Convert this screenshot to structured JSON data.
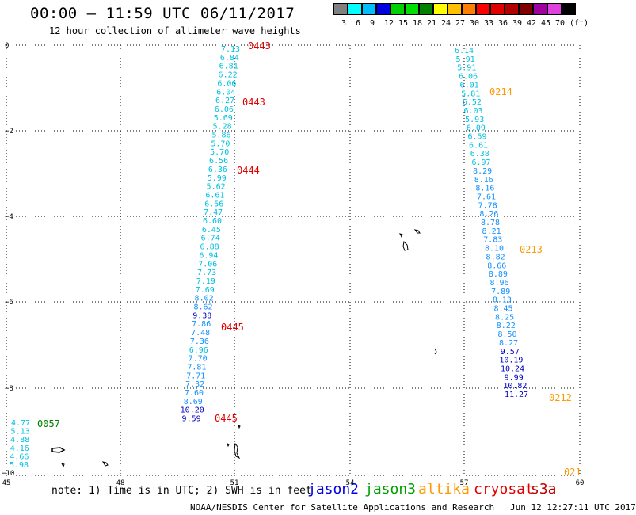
{
  "title": "00:00 – 11:59 UTC 06/11/2017",
  "subtitle": "12 hour collection of altimeter wave heights",
  "colorbar": {
    "colors": [
      "#808080",
      "#00ffff",
      "#00bfff",
      "#0000e0",
      "#00d000",
      "#00e000",
      "#008000",
      "#ffff00",
      "#ffc000",
      "#ff8000",
      "#ff0000",
      "#e00000",
      "#b00000",
      "#800000",
      "#a000a0",
      "#e040e0",
      "#000000"
    ],
    "labels": [
      "3",
      "6",
      "9",
      "12",
      "15",
      "18",
      "21",
      "24",
      "27",
      "30",
      "33",
      "36",
      "39",
      "42",
      "45",
      "70",
      "(ft)"
    ]
  },
  "axes": {
    "x_ticks": [
      "45",
      "48",
      "51",
      "54",
      "57",
      "60"
    ],
    "y_ticks": [
      "0",
      "−2",
      "−4",
      "−6",
      "−8",
      "−10"
    ]
  },
  "tracks": [
    {
      "name": "left",
      "values": [
        {
          "v": "7.13",
          "c": "#00c0e0"
        },
        {
          "v": "6.84",
          "c": "#00c0e0"
        },
        {
          "v": "6.81",
          "c": "#00c0e0"
        },
        {
          "v": "6.22",
          "c": "#00c0e0"
        },
        {
          "v": "6.06",
          "c": "#00c0e0"
        },
        {
          "v": "6.04",
          "c": "#00c0e0"
        },
        {
          "v": "6.27",
          "c": "#00c0e0"
        },
        {
          "v": "6.06",
          "c": "#00c0e0"
        },
        {
          "v": "5.69",
          "c": "#00c0e0"
        },
        {
          "v": "5.28",
          "c": "#00c0e0"
        },
        {
          "v": "5.86",
          "c": "#00c0e0"
        },
        {
          "v": "5.70",
          "c": "#00c0e0"
        },
        {
          "v": "5.70",
          "c": "#00c0e0"
        },
        {
          "v": "6.56",
          "c": "#00c0e0"
        },
        {
          "v": "6.36",
          "c": "#00c0e0"
        },
        {
          "v": "5.99",
          "c": "#00c0e0"
        },
        {
          "v": "5.62",
          "c": "#00c0e0"
        },
        {
          "v": "6.61",
          "c": "#00c0e0"
        },
        {
          "v": "6.56",
          "c": "#00c0e0"
        },
        {
          "v": "7.47",
          "c": "#00c0e0"
        },
        {
          "v": "6.60",
          "c": "#00c0e0"
        },
        {
          "v": "6.45",
          "c": "#00c0e0"
        },
        {
          "v": "6.74",
          "c": "#00c0e0"
        },
        {
          "v": "6.88",
          "c": "#00c0e0"
        },
        {
          "v": "6.94",
          "c": "#00c0e0"
        },
        {
          "v": "7.06",
          "c": "#00c0e0"
        },
        {
          "v": "7.73",
          "c": "#00c0e0"
        },
        {
          "v": "7.19",
          "c": "#00c0e0"
        },
        {
          "v": "7.69",
          "c": "#00c0e0"
        },
        {
          "v": "8.02",
          "c": "#1090ff"
        },
        {
          "v": "8.62",
          "c": "#1090ff"
        },
        {
          "v": "9.38",
          "c": "#0000c0"
        },
        {
          "v": "7.86",
          "c": "#1090ff"
        },
        {
          "v": "7.48",
          "c": "#1090ff"
        },
        {
          "v": "7.36",
          "c": "#1090ff"
        },
        {
          "v": "6.96",
          "c": "#00c0e0"
        },
        {
          "v": "7.70",
          "c": "#1090ff"
        },
        {
          "v": "7.81",
          "c": "#1090ff"
        },
        {
          "v": "7.71",
          "c": "#1090ff"
        },
        {
          "v": "7.32",
          "c": "#1090ff"
        },
        {
          "v": "7.60",
          "c": "#1090ff"
        },
        {
          "v": "8.69",
          "c": "#1090ff"
        },
        {
          "v": "10.20",
          "c": "#0000c0"
        },
        {
          "v": "9.59",
          "c": "#0000c0"
        }
      ]
    },
    {
      "name": "right",
      "values": [
        {
          "v": "6.14",
          "c": "#00c0e0"
        },
        {
          "v": "5.91",
          "c": "#00c0e0"
        },
        {
          "v": "5.91",
          "c": "#00c0e0"
        },
        {
          "v": "6.06",
          "c": "#00c0e0"
        },
        {
          "v": "6.01",
          "c": "#00c0e0"
        },
        {
          "v": "5.81",
          "c": "#00c0e0"
        },
        {
          "v": "6.52",
          "c": "#00c0e0"
        },
        {
          "v": "6.03",
          "c": "#00c0e0"
        },
        {
          "v": "5.93",
          "c": "#00c0e0"
        },
        {
          "v": "6.09",
          "c": "#00c0e0"
        },
        {
          "v": "6.59",
          "c": "#00c0e0"
        },
        {
          "v": "6.61",
          "c": "#00c0e0"
        },
        {
          "v": "6.38",
          "c": "#00c0e0"
        },
        {
          "v": "6.97",
          "c": "#00c0e0"
        },
        {
          "v": "8.29",
          "c": "#1090ff"
        },
        {
          "v": "8.16",
          "c": "#1090ff"
        },
        {
          "v": "8.16",
          "c": "#1090ff"
        },
        {
          "v": "7.61",
          "c": "#1090ff"
        },
        {
          "v": "7.78",
          "c": "#1090ff"
        },
        {
          "v": "8.26",
          "c": "#1090ff"
        },
        {
          "v": "8.78",
          "c": "#1090ff"
        },
        {
          "v": "8.21",
          "c": "#1090ff"
        },
        {
          "v": "7.83",
          "c": "#1090ff"
        },
        {
          "v": "8.10",
          "c": "#1090ff"
        },
        {
          "v": "8.82",
          "c": "#1090ff"
        },
        {
          "v": "8.66",
          "c": "#1090ff"
        },
        {
          "v": "8.89",
          "c": "#1090ff"
        },
        {
          "v": "8.96",
          "c": "#1090ff"
        },
        {
          "v": "7.89",
          "c": "#1090ff"
        },
        {
          "v": "8.13",
          "c": "#1090ff"
        },
        {
          "v": "8.45",
          "c": "#1090ff"
        },
        {
          "v": "8.25",
          "c": "#1090ff"
        },
        {
          "v": "8.22",
          "c": "#1090ff"
        },
        {
          "v": "8.50",
          "c": "#1090ff"
        },
        {
          "v": "8.27",
          "c": "#1090ff"
        },
        {
          "v": "9.57",
          "c": "#0000c0"
        },
        {
          "v": "10.19",
          "c": "#0000c0"
        },
        {
          "v": "10.24",
          "c": "#0000c0"
        },
        {
          "v": "9.99",
          "c": "#0000c0"
        },
        {
          "v": "10.82",
          "c": "#0000c0"
        },
        {
          "v": "11.27",
          "c": "#0000c0"
        }
      ]
    },
    {
      "name": "bottom-left",
      "values": [
        {
          "v": "4.77",
          "c": "#00c0e0"
        },
        {
          "v": "5.13",
          "c": "#00c0e0"
        },
        {
          "v": "4.88",
          "c": "#00c0e0"
        },
        {
          "v": "4.16",
          "c": "#00c0e0"
        },
        {
          "v": "4.66",
          "c": "#00c0e0"
        },
        {
          "v": "5.98",
          "c": "#00c0e0"
        }
      ]
    }
  ],
  "time_labels": [
    {
      "t": "0443",
      "c": "#e00000"
    },
    {
      "t": "0443",
      "c": "#e00000"
    },
    {
      "t": "0444",
      "c": "#e00000"
    },
    {
      "t": "0445",
      "c": "#e00000"
    },
    {
      "t": "0445",
      "c": "#e00000"
    },
    {
      "t": "0214",
      "c": "#ff9900"
    },
    {
      "t": "0213",
      "c": "#ff9900"
    },
    {
      "t": "0212",
      "c": "#ff9900"
    },
    {
      "t": "021",
      "c": "#ff9900"
    },
    {
      "t": "0057",
      "c": "#008000"
    }
  ],
  "footer": {
    "note": "note: 1) Time is in UTC; 2) SWH is in feet",
    "satellites": [
      {
        "name": "jason2",
        "color": "#0000e0"
      },
      {
        "name": "jason3",
        "color": "#00a000"
      },
      {
        "name": "altika",
        "color": "#ff9900"
      },
      {
        "name": "cryosat",
        "color": "#e00000"
      },
      {
        "name": "s3a",
        "color": "#c00000"
      }
    ],
    "credit": "NOAA/NESDIS Center for Satellite Applications and Research",
    "timestamp": "Jun 12 12:27:11 UTC 2017"
  }
}
